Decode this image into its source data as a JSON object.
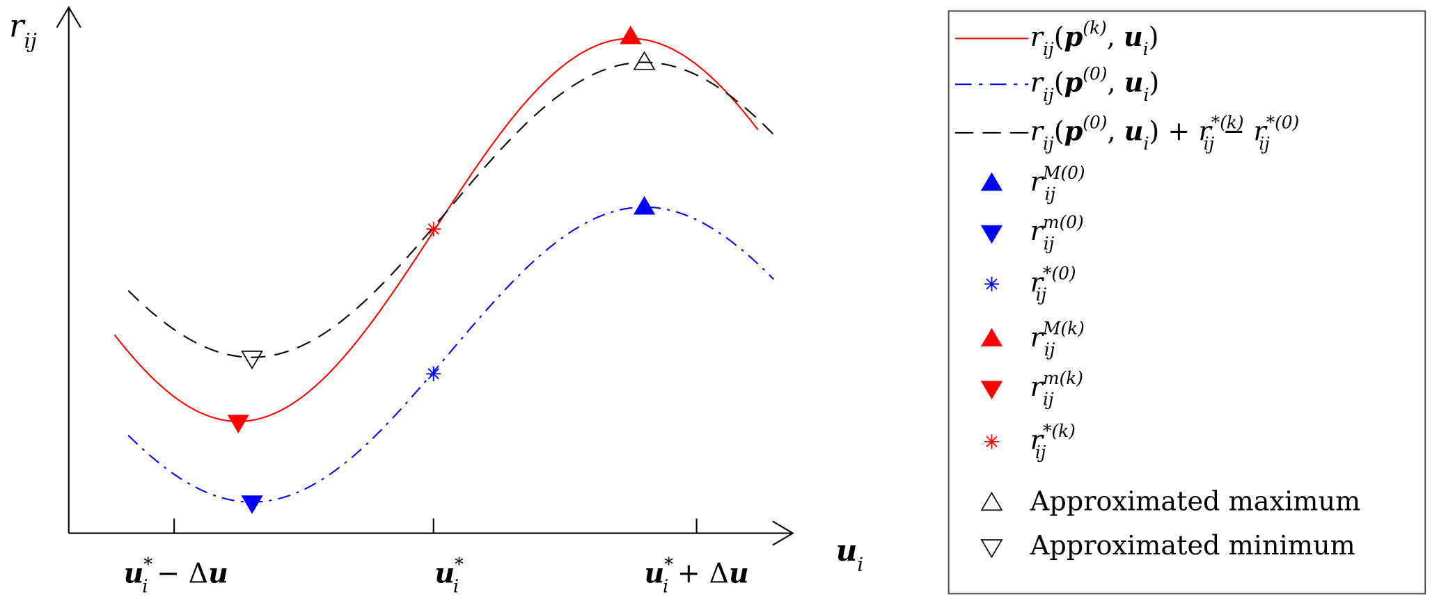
{
  "axes": {
    "y_label": [
      [
        "r",
        "i"
      ],
      [
        "ij",
        "sub"
      ]
    ],
    "x_label": [
      [
        "u",
        "b"
      ],
      [
        "i",
        "sub"
      ]
    ],
    "x_ticks": [
      [
        [
          "u",
          "b"
        ],
        [
          "*",
          "sup"
        ],
        [
          "i",
          "subback"
        ],
        [
          " − ",
          "n"
        ],
        [
          "Δ",
          "n"
        ],
        [
          "u",
          "b"
        ]
      ],
      [
        [
          "u",
          "b"
        ],
        [
          "*",
          "sup"
        ],
        [
          "i",
          "subback"
        ]
      ],
      [
        [
          "u",
          "b"
        ],
        [
          "*",
          "sup"
        ],
        [
          "i",
          "subback"
        ],
        [
          " + ",
          "n"
        ],
        [
          "Δ",
          "n"
        ],
        [
          "u",
          "b"
        ]
      ]
    ]
  },
  "colors": {
    "red": "#ff0000",
    "blue": "#0000ff",
    "black": "#000000"
  },
  "legend": [
    {
      "kind": "line",
      "style": "solid",
      "color": "#ff0000",
      "label": [
        [
          "r",
          "i"
        ],
        [
          "ij",
          "sub"
        ],
        [
          "(",
          "n"
        ],
        [
          "p",
          "b"
        ],
        [
          "(k)",
          "sup"
        ],
        [
          ", ",
          "n"
        ],
        [
          "u",
          "b"
        ],
        [
          "i",
          "sub"
        ],
        [
          ")",
          "n"
        ]
      ]
    },
    {
      "kind": "line",
      "style": "dashdot",
      "color": "#0000ff",
      "label": [
        [
          "r",
          "i"
        ],
        [
          "ij",
          "sub"
        ],
        [
          "(",
          "n"
        ],
        [
          "p",
          "b"
        ],
        [
          "(0)",
          "sup"
        ],
        [
          ", ",
          "n"
        ],
        [
          "u",
          "b"
        ],
        [
          "i",
          "sub"
        ],
        [
          ")",
          "n"
        ]
      ]
    },
    {
      "kind": "line",
      "style": "dashed",
      "color": "#000000",
      "label": [
        [
          "r",
          "i"
        ],
        [
          "ij",
          "sub"
        ],
        [
          "(",
          "n"
        ],
        [
          "p",
          "b"
        ],
        [
          "(0)",
          "sup"
        ],
        [
          ", ",
          "n"
        ],
        [
          "u",
          "b"
        ],
        [
          "i",
          "sub"
        ],
        [
          ") + ",
          "n"
        ],
        [
          "r",
          "i"
        ],
        [
          "*(k)",
          "sup"
        ],
        [
          "ij",
          "subback"
        ],
        [
          " − ",
          "n"
        ],
        [
          "r",
          "i"
        ],
        [
          "*(0)",
          "sup"
        ],
        [
          "ij",
          "subback"
        ]
      ]
    },
    {
      "kind": "marker",
      "marker": "triangle-up-filled",
      "color": "#0000ff",
      "label": [
        [
          "r",
          "i"
        ],
        [
          "M(0)",
          "sup"
        ],
        [
          "ij",
          "subback"
        ]
      ]
    },
    {
      "kind": "marker",
      "marker": "triangle-down-filled",
      "color": "#0000ff",
      "label": [
        [
          "r",
          "i"
        ],
        [
          "m(0)",
          "sup"
        ],
        [
          "ij",
          "subback"
        ]
      ]
    },
    {
      "kind": "marker",
      "marker": "asterisk",
      "color": "#0000ff",
      "label": [
        [
          "r",
          "i"
        ],
        [
          "*(0)",
          "sup"
        ],
        [
          "ij",
          "subback"
        ]
      ]
    },
    {
      "kind": "marker",
      "marker": "triangle-up-filled",
      "color": "#ff0000",
      "label": [
        [
          "r",
          "i"
        ],
        [
          "M(k)",
          "sup"
        ],
        [
          "ij",
          "subback"
        ]
      ]
    },
    {
      "kind": "marker",
      "marker": "triangle-down-filled",
      "color": "#ff0000",
      "label": [
        [
          "r",
          "i"
        ],
        [
          "m(k)",
          "sup"
        ],
        [
          "ij",
          "subback"
        ]
      ]
    },
    {
      "kind": "marker",
      "marker": "asterisk",
      "color": "#ff0000",
      "label": [
        [
          "r",
          "i"
        ],
        [
          "*(k)",
          "sup"
        ],
        [
          "ij",
          "subback"
        ]
      ]
    },
    {
      "kind": "marker",
      "marker": "triangle-up-open",
      "color": "#000000",
      "label": [
        [
          "Approximated maximum",
          "n"
        ]
      ]
    },
    {
      "kind": "marker",
      "marker": "triangle-down-open",
      "color": "#000000",
      "label": [
        [
          "Approximated minimum",
          "n"
        ]
      ]
    }
  ]
}
